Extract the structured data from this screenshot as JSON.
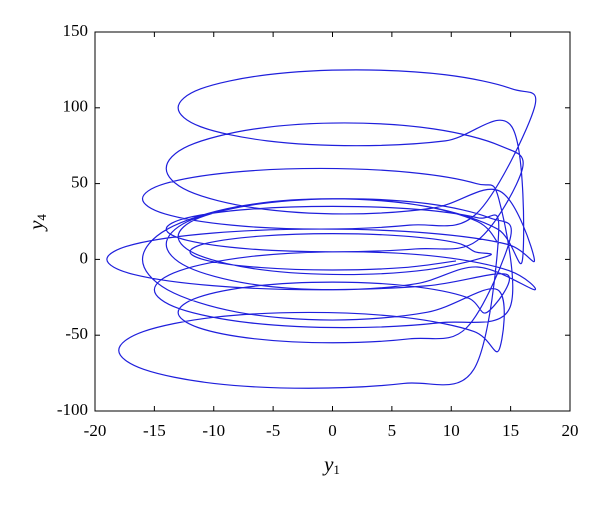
{
  "chart_data": {
    "type": "line",
    "xlabel": {
      "text": "y",
      "subscript": "1"
    },
    "ylabel": {
      "text": "y",
      "subscript": "4"
    },
    "xlim": [
      -20,
      20
    ],
    "xticks": [
      -20,
      -15,
      -10,
      -5,
      0,
      5,
      10,
      15,
      20
    ],
    "ylim": [
      -100,
      150
    ],
    "yticks": [
      -100,
      -50,
      0,
      50,
      100,
      150
    ],
    "grid": false,
    "series": [
      {
        "color": "#1f1fdc",
        "x": [
          14,
          12.2,
          7,
          0,
          -7,
          -12.2,
          -14,
          -12.2,
          -7,
          0,
          7,
          12.2,
          17,
          14.9,
          9,
          1,
          -7,
          -12.9,
          -15,
          -12.9,
          -7,
          1,
          9,
          14.9,
          14,
          12.1,
          6.5,
          -1,
          -8.5,
          -14.1,
          -16,
          -14.1,
          -8.5,
          -1,
          6.5,
          12.1,
          17,
          15.1,
          9.5,
          2,
          -5.5,
          -11.1,
          -13,
          -11.1,
          -5.5,
          2,
          9.5,
          15.1,
          16,
          13.9,
          8,
          0,
          -8,
          -13.9,
          -16,
          -13.9,
          -8,
          0,
          8,
          13.9,
          14,
          11.9,
          6,
          -2,
          -10,
          -15.9,
          -18,
          -15.9,
          -10,
          -2,
          6,
          11.9,
          14,
          12.2,
          7,
          0,
          -7,
          -12.2,
          -14,
          -12.2,
          -7,
          0,
          7,
          12.2,
          16,
          14.1,
          8.5,
          1,
          -6.5,
          -12.1,
          -14,
          -12.1,
          -6.5,
          1,
          8.5,
          14.1,
          17,
          14.7,
          8,
          -1,
          -10,
          -16.7,
          -19,
          -16.7,
          -10,
          -1,
          8,
          14.7,
          13,
          11.3,
          6.5,
          0,
          -6.5,
          -11.3,
          -13,
          -11.3,
          -6.5,
          0,
          6.5,
          11.3,
          15,
          13.2,
          8,
          1,
          -6,
          -11.2,
          -13,
          -11.2,
          -6,
          1,
          8,
          13.2,
          12,
          10.4,
          6,
          0,
          -6,
          -10.4,
          -12,
          -10.4,
          -6,
          0,
          6,
          10.4
        ],
        "values": [
          10,
          25,
          36.1,
          40,
          36.1,
          25,
          10,
          -5,
          -16.1,
          -20,
          -16.1,
          -5,
          -20,
          -7.5,
          1.8,
          5,
          1.8,
          -7.5,
          -20,
          -32.5,
          -41.8,
          -45,
          -41.8,
          -32.5,
          40,
          50,
          57.4,
          60,
          57.4,
          50,
          40,
          30,
          22.6,
          20,
          22.6,
          30,
          100,
          112.5,
          121.8,
          125,
          121.8,
          112.5,
          100,
          87.5,
          78.2,
          75,
          78.2,
          87.5,
          0,
          20,
          34.8,
          40,
          34.8,
          20,
          0,
          -20,
          -34.8,
          -40,
          -34.8,
          -20,
          -60,
          -47.5,
          -38.2,
          -35,
          -38.2,
          -47.5,
          -60,
          -72.5,
          -81.8,
          -85,
          -81.8,
          -72.5,
          20,
          27.5,
          33.1,
          35,
          33.1,
          27.5,
          20,
          12.5,
          6.9,
          5,
          6.9,
          12.5,
          60,
          75,
          86.1,
          90,
          86.1,
          75,
          60,
          45,
          33.9,
          30,
          33.9,
          45,
          0,
          10,
          17.4,
          20,
          17.4,
          10,
          0,
          -10,
          -17.4,
          -20,
          -17.4,
          -10,
          -35,
          -25,
          -17.6,
          -15,
          -17.6,
          -25,
          -35,
          -45,
          -52.4,
          -55,
          -52.4,
          -45,
          15,
          27.5,
          36.8,
          40,
          36.8,
          27.5,
          15,
          2.5,
          -6.8,
          -10,
          -6.8,
          2.5,
          5,
          11,
          15.4,
          17,
          15.4,
          11,
          5,
          -1,
          -5.4,
          -7,
          -5.4,
          -1
        ]
      }
    ]
  }
}
